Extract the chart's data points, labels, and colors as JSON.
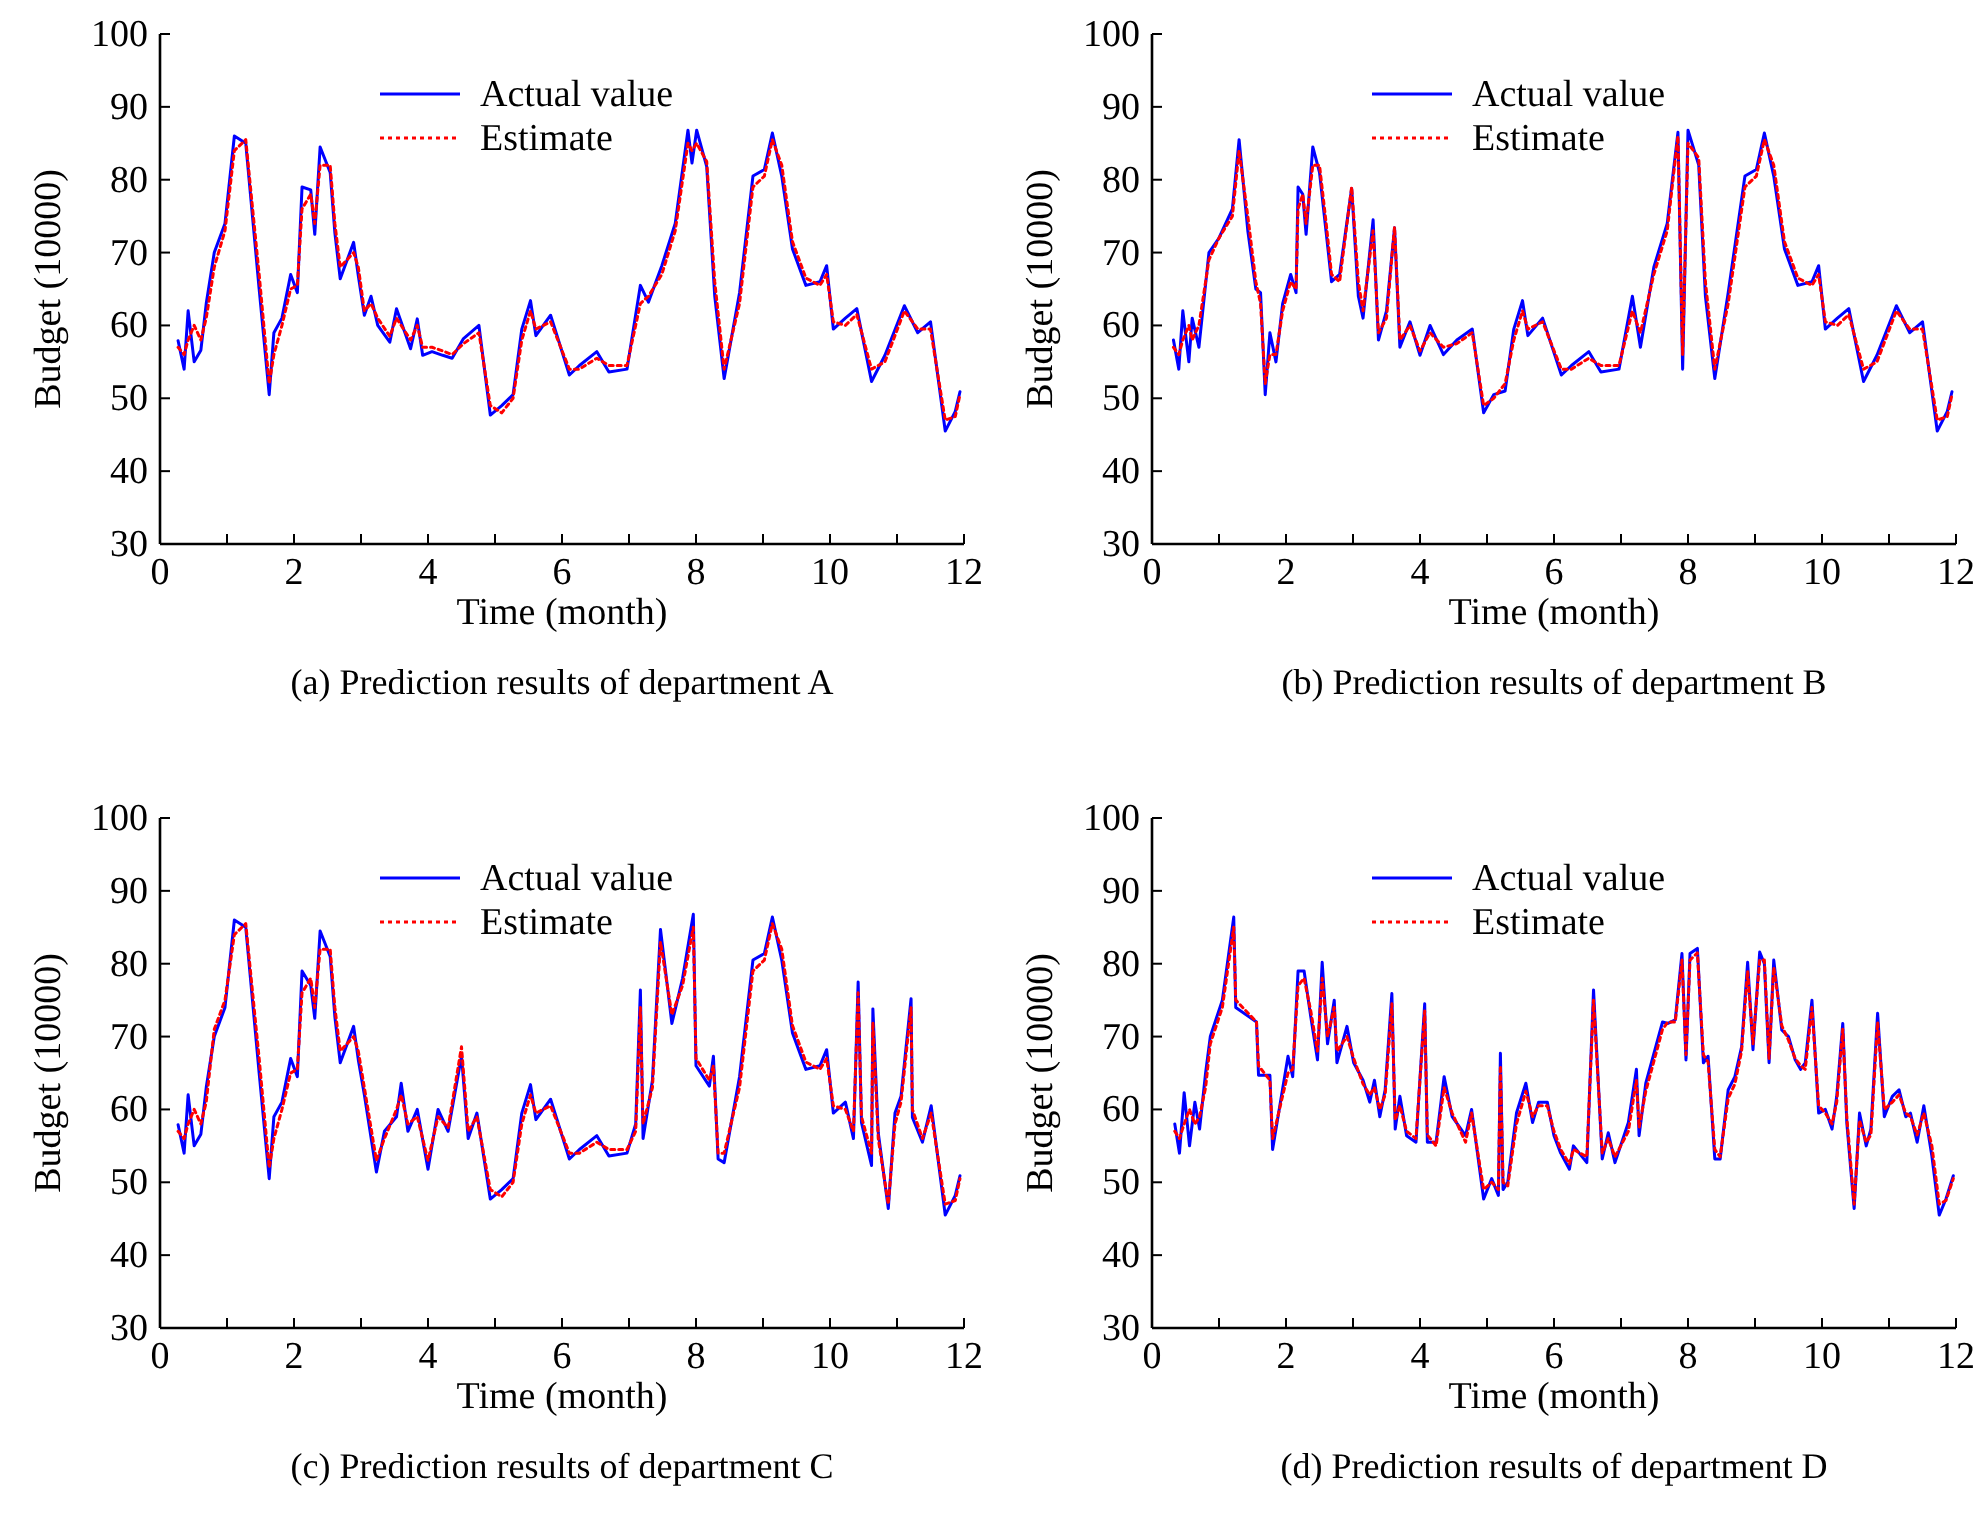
{
  "chart_data": [
    {
      "type": "line",
      "title": "(a) Prediction results of department A",
      "xlabel": "Time (month)",
      "ylabel": "Budget (10000)",
      "xlim": [
        0,
        12
      ],
      "ylim": [
        30,
        100
      ],
      "xticks": [
        0,
        {
          "value": 1,
          "label": null
        },
        2,
        {
          "value": 3,
          "label": null
        },
        4,
        {
          "value": 5,
          "label": null
        },
        6,
        {
          "value": 7,
          "label": null
        },
        8,
        {
          "value": 9,
          "label": null
        },
        10,
        {
          "value": 11,
          "label": null
        },
        12
      ],
      "yticks": [
        30,
        40,
        50,
        60,
        70,
        80,
        90,
        100
      ],
      "legend": "top",
      "grid": false,
      "x": [
        0.27,
        0.36,
        0.42,
        0.51,
        0.61,
        0.69,
        0.81,
        0.97,
        1.11,
        1.28,
        1.48,
        1.63,
        1.7,
        1.82,
        1.95,
        2.05,
        2.12,
        2.25,
        2.31,
        2.39,
        2.54,
        2.61,
        2.69,
        2.89,
        2.96,
        3.05,
        3.15,
        3.25,
        3.43,
        3.53,
        3.74,
        3.84,
        3.92,
        4.06,
        4.22,
        4.36,
        4.53,
        4.76,
        4.93,
        5.1,
        5.27,
        5.4,
        5.53,
        5.61,
        5.83,
        6.11,
        6.26,
        6.52,
        6.7,
        6.97,
        7.17,
        7.29,
        7.49,
        7.69,
        7.88,
        7.94,
        8.01,
        8.16,
        8.28,
        8.42,
        8.65,
        8.85,
        9.02,
        9.14,
        9.28,
        9.44,
        9.64,
        9.85,
        9.95,
        10.05,
        10.23,
        10.4,
        10.62,
        10.82,
        11.11,
        11.31,
        11.5,
        11.72,
        11.87,
        11.94
      ],
      "series": [
        {
          "name": "Actual value",
          "color": "#0000ff",
          "line_style": "solid",
          "values": [
            57.9,
            54,
            62,
            55,
            56.6,
            63,
            70,
            74,
            86,
            85,
            65,
            50.5,
            59,
            61,
            67,
            64.5,
            79,
            78.6,
            72.5,
            84.5,
            81,
            72.7,
            66.4,
            71.4,
            66.8,
            61.4,
            64,
            60,
            57.7,
            62.3,
            56.8,
            60.9,
            55.9,
            56.4,
            55.9,
            55.5,
            58.2,
            60,
            47.7,
            49,
            50.5,
            59.5,
            63.4,
            58.6,
            61.4,
            53.2,
            54.5,
            56.4,
            53.6,
            54,
            65.5,
            63.2,
            68.2,
            74,
            86.8,
            82.3,
            86.8,
            81.8,
            64,
            52.7,
            64.5,
            80.5,
            81.4,
            86.4,
            80.5,
            70.5,
            65.5,
            66,
            68.2,
            59.5,
            61,
            62.3,
            52.3,
            55.9,
            62.7,
            59,
            60.5,
            45.5,
            48.2,
            50.9
          ]
        },
        {
          "name": "Estimate",
          "color": "#ff0000",
          "line_style": "dotted",
          "values": [
            57,
            56,
            58,
            60,
            58,
            61,
            68,
            73,
            84,
            85.5,
            67,
            52,
            56,
            60,
            65,
            65.5,
            76,
            78,
            74,
            82,
            82,
            74,
            68,
            70,
            68,
            62,
            63,
            61,
            58.5,
            61,
            58,
            60,
            57,
            57,
            56.5,
            56,
            57.5,
            59,
            49,
            48,
            50,
            58,
            62,
            59.5,
            60.5,
            54,
            54,
            55.5,
            54.5,
            54.5,
            63,
            64,
            67,
            73,
            85,
            84,
            85,
            82.5,
            66,
            54,
            63,
            79,
            80.5,
            85.5,
            82,
            71.5,
            66.5,
            65.5,
            67,
            60.5,
            60,
            61.5,
            54,
            55,
            62,
            59.5,
            59.5,
            47,
            47.5,
            50.5
          ]
        }
      ]
    },
    {
      "type": "line",
      "title": "(b) Prediction results of department B",
      "xlabel": "Time (month)",
      "ylabel": "Budget (10000)",
      "xlim": [
        0,
        12
      ],
      "ylim": [
        30,
        100
      ],
      "xticks": [
        0,
        {
          "value": 1,
          "label": null
        },
        2,
        {
          "value": 3,
          "label": null
        },
        4,
        {
          "value": 5,
          "label": null
        },
        6,
        {
          "value": 7,
          "label": null
        },
        8,
        {
          "value": 9,
          "label": null
        },
        10,
        {
          "value": 11,
          "label": null
        },
        12
      ],
      "yticks": [
        30,
        40,
        50,
        60,
        70,
        80,
        90,
        100
      ],
      "legend": "top",
      "grid": false,
      "x": [
        0.32,
        0.4,
        0.46,
        0.55,
        0.6,
        0.7,
        0.85,
        1.0,
        1.2,
        1.3,
        1.43,
        1.55,
        1.62,
        1.69,
        1.76,
        1.85,
        1.95,
        2.07,
        2.15,
        2.18,
        2.25,
        2.3,
        2.4,
        2.5,
        2.6,
        2.68,
        2.8,
        2.98,
        3.08,
        3.15,
        3.3,
        3.38,
        3.5,
        3.62,
        3.7,
        3.85,
        4.0,
        4.15,
        4.35,
        4.55,
        4.78,
        4.95,
        5.1,
        5.27,
        5.4,
        5.53,
        5.61,
        5.83,
        6.11,
        6.26,
        6.52,
        6.7,
        6.97,
        7.17,
        7.29,
        7.49,
        7.69,
        7.85,
        7.92,
        8.0,
        8.16,
        8.26,
        8.4,
        8.6,
        8.85,
        9.02,
        9.14,
        9.28,
        9.44,
        9.64,
        9.85,
        9.95,
        10.05,
        10.23,
        10.4,
        10.62,
        10.82,
        11.11,
        11.31,
        11.5,
        11.72,
        11.87,
        11.94
      ],
      "series": [
        {
          "name": "Actual value",
          "color": "#0000ff",
          "line_style": "solid",
          "values": [
            58,
            54,
            62,
            55,
            61,
            57,
            70,
            72,
            76,
            85.5,
            73,
            65,
            64.5,
            50.5,
            59,
            55,
            63,
            67,
            64.5,
            79,
            78,
            72.5,
            84.5,
            81,
            72.7,
            66,
            67,
            78.8,
            64,
            61,
            74.5,
            58,
            62,
            73.4,
            57,
            60.5,
            55.9,
            60,
            56,
            58,
            59.5,
            48,
            50.5,
            51,
            59.5,
            63.4,
            58.6,
            61,
            53.2,
            54.5,
            56.4,
            53.6,
            54,
            64,
            57,
            68,
            74,
            86.5,
            54,
            86.8,
            82,
            64,
            52.7,
            64.5,
            80.5,
            81.4,
            86.4,
            80.5,
            70.5,
            65.5,
            66,
            68.2,
            59.5,
            61,
            62.3,
            52.3,
            55.9,
            62.7,
            59,
            60.5,
            45.5,
            48.2,
            50.9
          ]
        },
        {
          "name": "Estimate",
          "color": "#ff0000",
          "line_style": "dotted",
          "values": [
            57,
            56,
            58,
            60,
            58,
            60,
            69,
            72,
            75,
            84,
            75,
            66,
            63,
            52,
            56,
            56,
            62,
            66,
            65,
            76,
            78,
            74,
            82,
            82,
            74,
            67,
            66,
            79,
            66,
            62,
            73,
            59,
            61,
            73.5,
            58,
            60,
            56.5,
            59,
            57,
            57.5,
            59,
            49,
            50,
            52,
            58,
            62,
            59.5,
            60.5,
            54,
            54,
            55.5,
            54.5,
            54.5,
            62,
            59,
            67,
            73,
            86,
            56,
            85,
            83,
            66,
            54,
            63,
            79,
            80.5,
            85.5,
            82,
            71.5,
            66.5,
            65.5,
            67,
            60.5,
            60,
            61.5,
            54,
            55,
            62,
            59.5,
            59.5,
            47,
            47.5,
            50.5
          ]
        }
      ]
    },
    {
      "type": "line",
      "title": "(c) Prediction results of department C",
      "xlabel": "Time (month)",
      "ylabel": "Budget (10000)",
      "xlim": [
        0,
        12
      ],
      "ylim": [
        30,
        100
      ],
      "xticks": [
        0,
        {
          "value": 1,
          "label": null
        },
        2,
        {
          "value": 3,
          "label": null
        },
        4,
        {
          "value": 5,
          "label": null
        },
        6,
        {
          "value": 7,
          "label": null
        },
        8,
        {
          "value": 9,
          "label": null
        },
        10,
        {
          "value": 11,
          "label": null
        },
        12
      ],
      "yticks": [
        30,
        40,
        50,
        60,
        70,
        80,
        90,
        100
      ],
      "legend": "top",
      "grid": false,
      "x": [
        0.27,
        0.36,
        0.42,
        0.51,
        0.61,
        0.69,
        0.81,
        0.97,
        1.11,
        1.28,
        1.48,
        1.63,
        1.7,
        1.82,
        1.95,
        2.05,
        2.12,
        2.25,
        2.31,
        2.39,
        2.54,
        2.61,
        2.69,
        2.89,
        2.96,
        3.05,
        3.23,
        3.35,
        3.53,
        3.6,
        3.7,
        3.84,
        4.0,
        4.15,
        4.3,
        4.5,
        4.6,
        4.73,
        4.93,
        5.1,
        5.27,
        5.4,
        5.53,
        5.61,
        5.83,
        6.11,
        6.26,
        6.52,
        6.7,
        6.97,
        7.1,
        7.17,
        7.21,
        7.35,
        7.47,
        7.64,
        7.8,
        7.96,
        8.0,
        8.2,
        8.26,
        8.33,
        8.42,
        8.65,
        8.85,
        9.02,
        9.14,
        9.28,
        9.44,
        9.64,
        9.85,
        9.95,
        10.05,
        10.23,
        10.35,
        10.42,
        10.47,
        10.62,
        10.64,
        10.72,
        10.87,
        10.97,
        11.06,
        11.21,
        11.23,
        11.38,
        11.51,
        11.72,
        11.87,
        11.94
      ],
      "series": [
        {
          "name": "Actual value",
          "color": "#0000ff",
          "line_style": "solid",
          "values": [
            57.9,
            54,
            62,
            55,
            56.6,
            63,
            70,
            74,
            86,
            85,
            65,
            50.5,
            59,
            61,
            67,
            64.5,
            79,
            77,
            72.5,
            84.5,
            81,
            72.7,
            66.4,
            71.4,
            66.8,
            62,
            51.4,
            57,
            59,
            63.6,
            57,
            60,
            51.8,
            60,
            57,
            67.3,
            56,
            59.5,
            47.7,
            49,
            50.5,
            59.5,
            63.4,
            58.6,
            61.4,
            53.2,
            54.5,
            56.4,
            53.6,
            54,
            58,
            76.4,
            56,
            64,
            84.7,
            71.8,
            78,
            86.8,
            66,
            63.2,
            67.3,
            53.2,
            52.7,
            64.5,
            80.5,
            81.4,
            86.4,
            80.5,
            70.5,
            65.5,
            66,
            68.2,
            59.5,
            61,
            56,
            77.5,
            58.2,
            52.3,
            73.8,
            56.8,
            46.4,
            59.5,
            61.8,
            75.2,
            58.9,
            55.5,
            60.5,
            45.5,
            48.2,
            50.9
          ]
        },
        {
          "name": "Estimate",
          "color": "#ff0000",
          "line_style": "dotted",
          "values": [
            57,
            56,
            58,
            60,
            58,
            61,
            71,
            75,
            84,
            85.5,
            67,
            52,
            56,
            60,
            65,
            65.5,
            76,
            78,
            74,
            82,
            82,
            74,
            68,
            70,
            68,
            63,
            53,
            56,
            60,
            62,
            58,
            59,
            53,
            59,
            57.5,
            68.6,
            57,
            59,
            49,
            48,
            50,
            58,
            62,
            59.5,
            60.5,
            54,
            54,
            55.5,
            54.5,
            54.5,
            57,
            74,
            58,
            63,
            83,
            73,
            77,
            85,
            67,
            64,
            66,
            54,
            54,
            63,
            79,
            80.5,
            85.5,
            82,
            71.5,
            66.5,
            65.5,
            67,
            60.5,
            60,
            57,
            76,
            59,
            54,
            72,
            56,
            47,
            58,
            61,
            74,
            60,
            56,
            59.5,
            47,
            47.5,
            50.5
          ]
        }
      ]
    },
    {
      "type": "line",
      "title": "(d) Prediction results of department D",
      "xlabel": "Time (month)",
      "ylabel": "Budget (10000)",
      "xlim": [
        0,
        12
      ],
      "ylim": [
        30,
        100
      ],
      "xticks": [
        0,
        {
          "value": 1,
          "label": null
        },
        2,
        {
          "value": 3,
          "label": null
        },
        4,
        {
          "value": 5,
          "label": null
        },
        6,
        {
          "value": 7,
          "label": null
        },
        8,
        {
          "value": 9,
          "label": null
        },
        10,
        {
          "value": 11,
          "label": null
        },
        12
      ],
      "yticks": [
        30,
        40,
        50,
        60,
        70,
        80,
        90,
        100
      ],
      "legend": "top",
      "grid": false,
      "x": [
        0.34,
        0.41,
        0.48,
        0.56,
        0.64,
        0.71,
        0.8,
        0.87,
        1.05,
        1.22,
        1.25,
        1.56,
        1.59,
        1.76,
        1.8,
        2.03,
        2.1,
        2.18,
        2.27,
        2.37,
        2.47,
        2.54,
        2.62,
        2.72,
        2.76,
        2.91,
        3.01,
        3.15,
        3.25,
        3.32,
        3.4,
        3.48,
        3.58,
        3.63,
        3.7,
        3.8,
        3.94,
        4.07,
        4.11,
        4.24,
        4.36,
        4.48,
        4.68,
        4.77,
        4.95,
        5.07,
        5.17,
        5.2,
        5.24,
        5.31,
        5.44,
        5.58,
        5.68,
        5.77,
        5.9,
        6.0,
        6.1,
        6.23,
        6.29,
        6.49,
        6.59,
        6.72,
        6.81,
        6.91,
        7.11,
        7.23,
        7.27,
        7.37,
        7.62,
        7.7,
        7.81,
        7.91,
        7.97,
        8.03,
        8.14,
        8.23,
        8.3,
        8.4,
        8.48,
        8.6,
        8.7,
        8.8,
        8.89,
        8.97,
        9.07,
        9.14,
        9.21,
        9.28,
        9.4,
        9.5,
        9.6,
        9.68,
        9.75,
        9.85,
        9.95,
        10.05,
        10.15,
        10.22,
        10.31,
        10.37,
        10.48,
        10.56,
        10.66,
        10.73,
        10.83,
        10.93,
        11.05,
        11.15,
        11.25,
        11.32,
        11.42,
        11.52,
        11.64,
        11.75,
        11.85,
        11.96
      ],
      "series": [
        {
          "name": "Actual value",
          "color": "#0000ff",
          "line_style": "solid",
          "values": [
            58,
            54,
            62.3,
            55,
            61,
            57.3,
            65,
            70,
            75,
            86.4,
            74,
            72,
            64.7,
            64.7,
            54.5,
            67.3,
            64.5,
            79,
            79,
            72.7,
            66.8,
            80.2,
            69,
            75,
            66.4,
            71.4,
            66.4,
            64,
            61,
            64,
            59,
            62.7,
            75.9,
            57.3,
            61.8,
            56.4,
            55.5,
            74.5,
            55.5,
            55.5,
            64.5,
            59,
            56.4,
            60,
            47.7,
            50.5,
            48.2,
            67.7,
            49,
            50,
            59.5,
            63.6,
            58.2,
            61,
            61,
            56.4,
            54,
            51.8,
            55,
            52.7,
            76.4,
            53.2,
            56.8,
            52.7,
            58.2,
            65.5,
            56.4,
            63.6,
            72,
            71.8,
            72.3,
            81.4,
            66.8,
            81.4,
            82.1,
            66.4,
            67.3,
            53.2,
            53.2,
            62.7,
            64.5,
            68.6,
            80.2,
            68.2,
            81.6,
            80,
            66.4,
            80.5,
            70.9,
            70,
            66.8,
            65.5,
            66.4,
            75,
            59.5,
            60,
            57.3,
            61.8,
            71.8,
            58.2,
            46.4,
            59.5,
            55,
            57.3,
            73.2,
            59,
            61.8,
            62.7,
            59,
            59.5,
            55.5,
            60.5,
            53.6,
            45.5,
            47.7,
            50.9
          ]
        },
        {
          "name": "Estimate",
          "color": "#ff0000",
          "line_style": "dotted",
          "values": [
            57,
            56,
            58,
            60,
            58,
            59,
            63,
            69,
            74,
            85,
            75,
            72,
            66,
            64,
            56,
            65,
            65.5,
            77,
            78,
            73.5,
            68,
            78,
            70,
            74,
            68,
            70,
            67,
            63.5,
            62,
            63,
            60,
            62,
            74.5,
            58.5,
            60.5,
            57,
            56,
            73.5,
            56.5,
            55,
            63,
            59.5,
            55.5,
            59.5,
            49,
            50,
            49,
            66,
            50,
            49.5,
            58,
            62.5,
            59,
            60.5,
            60.5,
            57,
            54.5,
            52.5,
            54.5,
            53.5,
            75,
            54,
            56,
            53.5,
            57,
            64,
            57.5,
            62.5,
            71,
            72,
            72,
            80.5,
            67.5,
            80.5,
            81.5,
            67.5,
            66.5,
            54.5,
            53.5,
            61.5,
            63.5,
            68,
            79,
            69,
            80.5,
            80.5,
            67,
            79.5,
            71.5,
            69.5,
            67,
            66,
            65.5,
            74,
            60.5,
            59.5,
            58,
            61,
            71,
            59,
            47,
            58.5,
            55.5,
            56.5,
            72,
            60,
            61,
            62,
            59.5,
            59,
            56.5,
            59.5,
            55,
            47,
            47.5,
            50.5
          ]
        }
      ]
    }
  ]
}
